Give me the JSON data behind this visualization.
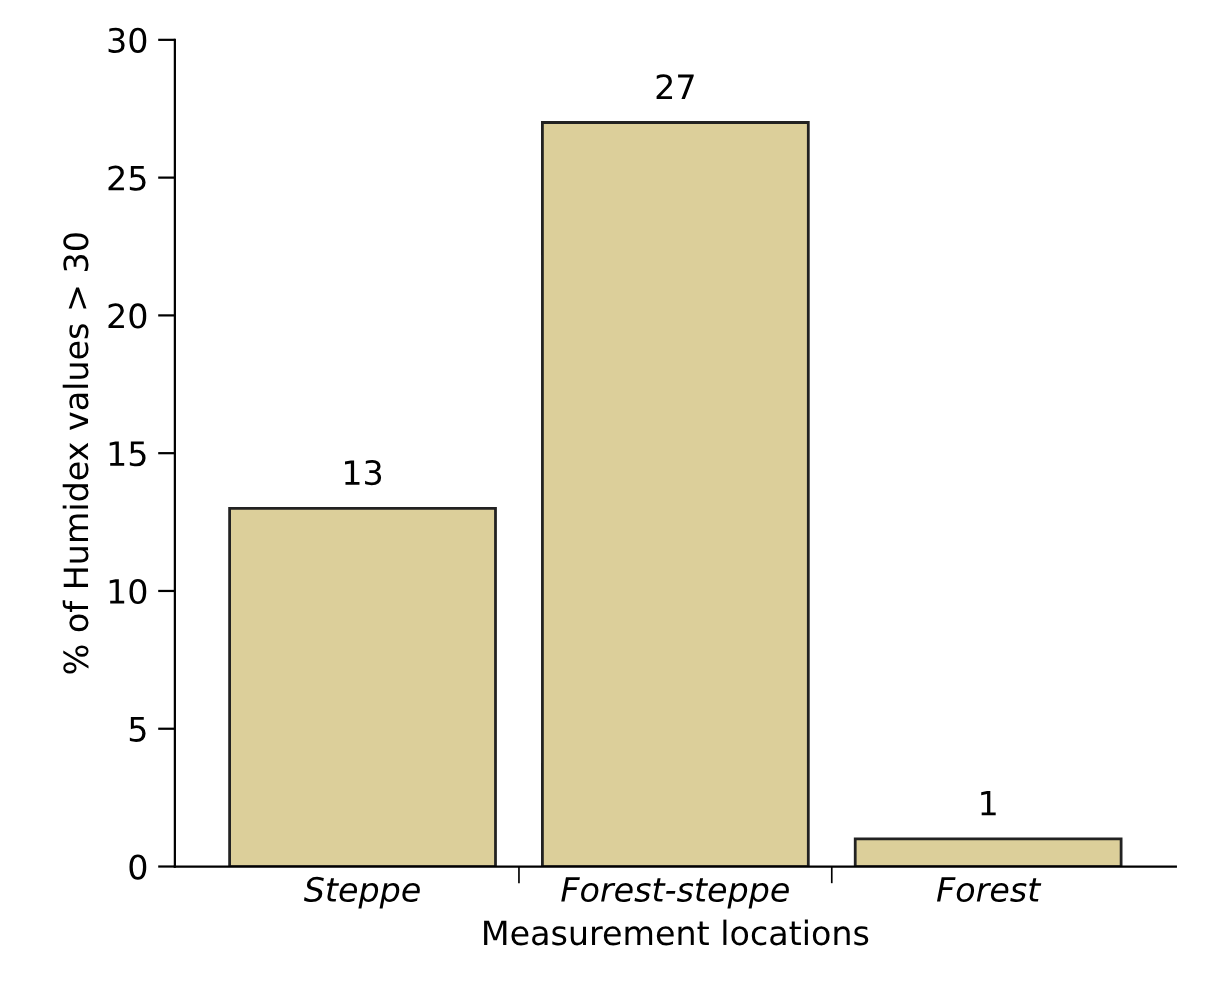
{
  "chart_data": {
    "type": "bar",
    "xlabel": "Measurement locations",
    "ylabel": "% of Humidex values > 30",
    "categories": [
      "Steppe",
      "Forest-steppe",
      "Forest"
    ],
    "values": [
      13,
      27,
      1
    ],
    "color": "#dccf9a",
    "ylim": [
      0,
      30
    ],
    "yticks": [
      0,
      5,
      10,
      15,
      20,
      25,
      30
    ],
    "data_labels": true,
    "grid": false,
    "legend": false
  }
}
